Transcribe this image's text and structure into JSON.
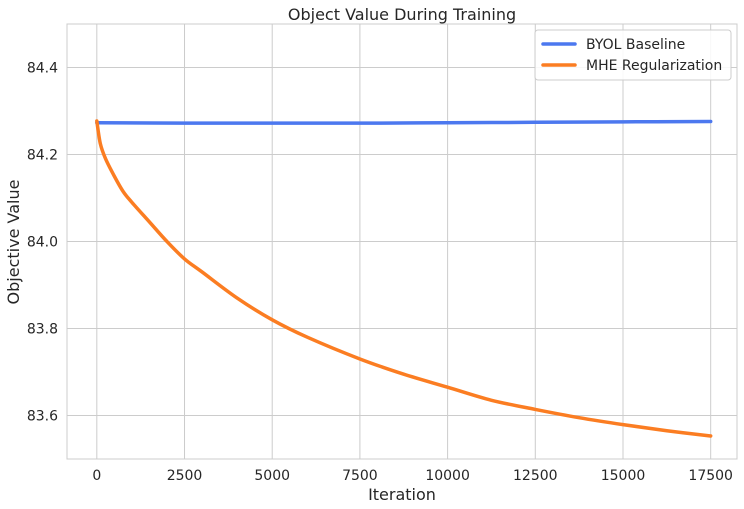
{
  "chart_data": {
    "type": "line",
    "title": "Object Value During Training",
    "xlabel": "Iteration",
    "ylabel": "Objective Value",
    "xlim": [
      -850,
      18250
    ],
    "ylim": [
      83.5,
      84.5
    ],
    "xticks": [
      0,
      2500,
      5000,
      7500,
      10000,
      12500,
      15000,
      17500
    ],
    "yticks": [
      83.6,
      83.8,
      84.0,
      84.2,
      84.4
    ],
    "ytick_labels": [
      "83.6",
      "83.8",
      "84.0",
      "84.2",
      "84.4"
    ],
    "grid": true,
    "legend_position": "top-right",
    "series": [
      {
        "name": "BYOL Baseline",
        "color": "#4c78ef",
        "x": [
          0,
          2500,
          5000,
          7500,
          10000,
          12500,
          15000,
          17500
        ],
        "y": [
          84.273,
          84.272,
          84.272,
          84.272,
          84.273,
          84.274,
          84.275,
          84.276
        ]
      },
      {
        "name": "MHE Regularization",
        "color": "#fb7d22",
        "x": [
          0,
          100,
          250,
          500,
          750,
          1000,
          1500,
          2000,
          2500,
          3000,
          4000,
          5000,
          6000,
          7500,
          8750,
          10000,
          11250,
          12500,
          13750,
          15000,
          16250,
          17500
        ],
        "y": [
          84.277,
          84.225,
          84.19,
          84.15,
          84.115,
          84.09,
          84.045,
          84.0,
          83.96,
          83.93,
          83.87,
          83.82,
          83.78,
          83.73,
          83.695,
          83.665,
          83.635,
          83.614,
          83.595,
          83.579,
          83.565,
          83.553
        ]
      }
    ]
  }
}
